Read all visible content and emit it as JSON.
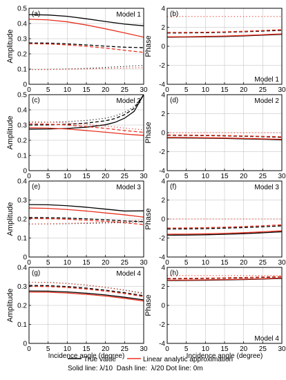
{
  "legend": {
    "true_value": "True value",
    "linear": "Linear analytic approximation",
    "line_key": "Solid line: λ/10  Dash line:  λ/20 Dot line: 0m"
  },
  "colors": {
    "true": "#000000",
    "approx": "#e8301f",
    "grid": "#b9b9b9"
  },
  "chart_data": [
    {
      "type": "line",
      "panel": "(a)",
      "model": "Model 1",
      "xlabel": "",
      "ylabel": "Amplitude",
      "xlim": [
        0,
        30
      ],
      "ylim": [
        0,
        0.5
      ],
      "xticks": [
        0,
        5,
        10,
        15,
        20,
        25,
        30
      ],
      "yticks": [
        0,
        0.1,
        0.2,
        0.3,
        0.4,
        0.5
      ],
      "x": [
        0,
        5,
        10,
        15,
        20,
        25,
        30
      ],
      "series": [
        {
          "kind": "true",
          "style": "solid",
          "values": [
            0.458,
            0.456,
            0.447,
            0.431,
            0.413,
            0.396,
            0.385
          ]
        },
        {
          "kind": "approx",
          "style": "solid",
          "values": [
            0.428,
            0.424,
            0.411,
            0.39,
            0.365,
            0.338,
            0.31
          ]
        },
        {
          "kind": "true",
          "style": "dashed",
          "values": [
            0.272,
            0.271,
            0.266,
            0.259,
            0.251,
            0.244,
            0.241
          ]
        },
        {
          "kind": "approx",
          "style": "dashed",
          "values": [
            0.267,
            0.265,
            0.259,
            0.25,
            0.238,
            0.224,
            0.21
          ]
        },
        {
          "kind": "true",
          "style": "dotted",
          "values": [
            0.097,
            0.098,
            0.101,
            0.105,
            0.111,
            0.118,
            0.124
          ]
        },
        {
          "kind": "approx",
          "style": "dotted",
          "values": [
            0.097,
            0.097,
            0.099,
            0.101,
            0.104,
            0.107,
            0.11
          ]
        }
      ]
    },
    {
      "type": "line",
      "panel": "(b)",
      "model": "Model 1",
      "xlabel": "",
      "ylabel": "Phase",
      "xlim": [
        0,
        30
      ],
      "ylim": [
        -4,
        4
      ],
      "xticks": [
        0,
        5,
        10,
        15,
        20,
        25,
        30
      ],
      "yticks": [
        -4,
        -2,
        0,
        2,
        4
      ],
      "x": [
        0,
        5,
        10,
        15,
        20,
        25,
        30
      ],
      "series": [
        {
          "kind": "true",
          "style": "solid",
          "values": [
            0.96,
            0.97,
            0.99,
            1.03,
            1.09,
            1.17,
            1.26
          ]
        },
        {
          "kind": "approx",
          "style": "solid",
          "values": [
            1.0,
            1.01,
            1.04,
            1.08,
            1.14,
            1.22,
            1.31
          ]
        },
        {
          "kind": "true",
          "style": "dashed",
          "values": [
            1.4,
            1.41,
            1.43,
            1.47,
            1.53,
            1.6,
            1.68
          ]
        },
        {
          "kind": "approx",
          "style": "dashed",
          "values": [
            1.45,
            1.46,
            1.48,
            1.52,
            1.58,
            1.66,
            1.75
          ]
        },
        {
          "kind": "approx",
          "style": "dotted",
          "values": [
            3.14,
            3.14,
            3.14,
            3.14,
            3.14,
            3.14,
            3.14
          ]
        }
      ]
    },
    {
      "type": "line",
      "panel": "(c)",
      "model": "Model 2",
      "xlabel": "",
      "ylabel": "Amplitude",
      "xlim": [
        0,
        30
      ],
      "ylim": [
        0,
        0.5
      ],
      "xticks": [
        0,
        5,
        10,
        15,
        20,
        25,
        30
      ],
      "yticks": [
        0,
        0.1,
        0.2,
        0.3,
        0.4,
        0.5
      ],
      "x": [
        0,
        5,
        10,
        15,
        20,
        22.5,
        25,
        27.5,
        30
      ],
      "series": [
        {
          "kind": "true",
          "style": "solid",
          "values": [
            0.273,
            0.274,
            0.278,
            0.286,
            0.302,
            0.318,
            0.345,
            0.39,
            0.5
          ]
        },
        {
          "kind": "approx",
          "style": "solid",
          "values": [
            0.282,
            0.28,
            0.274,
            0.264,
            0.253,
            0.247,
            0.241,
            0.236,
            0.232
          ]
        },
        {
          "kind": "true",
          "style": "dashed",
          "values": [
            0.3,
            0.301,
            0.305,
            0.313,
            0.328,
            0.343,
            0.368,
            0.41,
            0.5
          ]
        },
        {
          "kind": "approx",
          "style": "dashed",
          "values": [
            0.308,
            0.306,
            0.3,
            0.29,
            0.278,
            0.271,
            0.264,
            0.258,
            0.252
          ]
        },
        {
          "kind": "true",
          "style": "dotted",
          "values": [
            0.318,
            0.319,
            0.323,
            0.33,
            0.345,
            0.36,
            0.383,
            0.422,
            0.5
          ]
        },
        {
          "kind": "approx",
          "style": "dotted",
          "values": [
            0.322,
            0.32,
            0.314,
            0.305,
            0.294,
            0.287,
            0.28,
            0.274,
            0.268
          ]
        }
      ]
    },
    {
      "type": "line",
      "panel": "(d)",
      "model": "Model 2",
      "xlabel": "",
      "ylabel": "Phase",
      "xlim": [
        0,
        30
      ],
      "ylim": [
        -4,
        4
      ],
      "xticks": [
        0,
        5,
        10,
        15,
        20,
        25,
        30
      ],
      "yticks": [
        -4,
        -2,
        0,
        2,
        4
      ],
      "x": [
        0,
        5,
        10,
        15,
        20,
        25,
        30
      ],
      "series": [
        {
          "kind": "true",
          "style": "solid",
          "values": [
            -0.55,
            -0.56,
            -0.58,
            -0.61,
            -0.65,
            -0.7,
            -0.76
          ]
        },
        {
          "kind": "approx",
          "style": "solid",
          "values": [
            -0.5,
            -0.51,
            -0.53,
            -0.56,
            -0.6,
            -0.65,
            -0.7
          ]
        },
        {
          "kind": "true",
          "style": "dashed",
          "values": [
            -0.28,
            -0.29,
            -0.31,
            -0.34,
            -0.38,
            -0.43,
            -0.49
          ]
        },
        {
          "kind": "approx",
          "style": "dashed",
          "values": [
            -0.24,
            -0.25,
            -0.27,
            -0.3,
            -0.34,
            -0.39,
            -0.44
          ]
        },
        {
          "kind": "approx",
          "style": "dotted",
          "values": [
            0.0,
            0.0,
            0.0,
            0.0,
            0.0,
            0.0,
            0.0
          ]
        }
      ]
    },
    {
      "type": "line",
      "panel": "(e)",
      "model": "Model 3",
      "xlabel": "",
      "ylabel": "Amplitude",
      "xlim": [
        0,
        30
      ],
      "ylim": [
        0,
        0.4
      ],
      "xticks": [
        0,
        5,
        10,
        15,
        20,
        25,
        30
      ],
      "yticks": [
        0,
        0.1,
        0.2,
        0.3,
        0.4
      ],
      "x": [
        0,
        5,
        10,
        15,
        20,
        25,
        30
      ],
      "series": [
        {
          "kind": "true",
          "style": "solid",
          "values": [
            0.276,
            0.275,
            0.27,
            0.262,
            0.252,
            0.242,
            0.243
          ]
        },
        {
          "kind": "approx",
          "style": "solid",
          "values": [
            0.258,
            0.256,
            0.25,
            0.242,
            0.232,
            0.222,
            0.21
          ]
        },
        {
          "kind": "true",
          "style": "dashed",
          "values": [
            0.208,
            0.207,
            0.205,
            0.201,
            0.196,
            0.19,
            0.186
          ]
        },
        {
          "kind": "approx",
          "style": "dashed",
          "values": [
            0.203,
            0.202,
            0.199,
            0.194,
            0.188,
            0.18,
            0.171
          ]
        },
        {
          "kind": "true",
          "style": "dotted",
          "values": [
            0.174,
            0.174,
            0.175,
            0.177,
            0.179,
            0.182,
            0.186
          ]
        },
        {
          "kind": "approx",
          "style": "dotted",
          "values": [
            0.174,
            0.175,
            0.177,
            0.18,
            0.184,
            0.189,
            0.195
          ]
        }
      ]
    },
    {
      "type": "line",
      "panel": "(f)",
      "model": "Model 3",
      "xlabel": "",
      "ylabel": "Phase",
      "xlim": [
        0,
        30
      ],
      "ylim": [
        -4,
        4
      ],
      "xticks": [
        0,
        5,
        10,
        15,
        20,
        25,
        30
      ],
      "yticks": [
        -4,
        -2,
        0,
        2,
        4
      ],
      "x": [
        0,
        5,
        10,
        15,
        20,
        25,
        30
      ],
      "series": [
        {
          "kind": "true",
          "style": "solid",
          "values": [
            -1.7,
            -1.69,
            -1.66,
            -1.61,
            -1.54,
            -1.45,
            -1.34
          ]
        },
        {
          "kind": "approx",
          "style": "solid",
          "values": [
            -1.6,
            -1.59,
            -1.56,
            -1.51,
            -1.44,
            -1.35,
            -1.24
          ]
        },
        {
          "kind": "true",
          "style": "dashed",
          "values": [
            -1.05,
            -1.04,
            -1.01,
            -0.96,
            -0.9,
            -0.82,
            -0.72
          ]
        },
        {
          "kind": "approx",
          "style": "dashed",
          "values": [
            -0.95,
            -0.94,
            -0.91,
            -0.86,
            -0.79,
            -0.71,
            -0.61
          ]
        },
        {
          "kind": "approx",
          "style": "dotted",
          "values": [
            0.0,
            0.0,
            0.0,
            0.0,
            0.0,
            0.0,
            0.0
          ]
        }
      ]
    },
    {
      "type": "line",
      "panel": "(g)",
      "model": "Model 4",
      "xlabel": "Incidence angle (degree)",
      "ylabel": "Amplitude",
      "xlim": [
        0,
        30
      ],
      "ylim": [
        0,
        0.4
      ],
      "xticks": [
        0,
        5,
        10,
        15,
        20,
        25,
        30
      ],
      "yticks": [
        0,
        0.1,
        0.2,
        0.3,
        0.4
      ],
      "x": [
        0,
        5,
        10,
        15,
        20,
        25,
        30
      ],
      "series": [
        {
          "kind": "true",
          "style": "solid",
          "values": [
            0.276,
            0.275,
            0.271,
            0.264,
            0.255,
            0.243,
            0.229
          ]
        },
        {
          "kind": "approx",
          "style": "solid",
          "values": [
            0.27,
            0.269,
            0.265,
            0.258,
            0.249,
            0.237,
            0.223
          ]
        },
        {
          "kind": "true",
          "style": "dashed",
          "values": [
            0.305,
            0.304,
            0.299,
            0.291,
            0.28,
            0.267,
            0.251
          ]
        },
        {
          "kind": "approx",
          "style": "dashed",
          "values": [
            0.3,
            0.299,
            0.294,
            0.286,
            0.275,
            0.262,
            0.246
          ]
        },
        {
          "kind": "true",
          "style": "dotted",
          "values": [
            0.322,
            0.321,
            0.316,
            0.307,
            0.295,
            0.281,
            0.264
          ]
        },
        {
          "kind": "approx",
          "style": "dotted",
          "values": [
            0.322,
            0.32,
            0.315,
            0.306,
            0.294,
            0.279,
            0.261
          ]
        }
      ]
    },
    {
      "type": "line",
      "panel": "(h)",
      "model": "Model 4",
      "xlabel": "Incidence angle (degree)",
      "ylabel": "Phase",
      "xlim": [
        0,
        30
      ],
      "ylim": [
        -4,
        4
      ],
      "xticks": [
        0,
        5,
        10,
        15,
        20,
        25,
        30
      ],
      "yticks": [
        -4,
        -2,
        0,
        2,
        4
      ],
      "x": [
        0,
        5,
        10,
        15,
        20,
        25,
        30
      ],
      "series": [
        {
          "kind": "true",
          "style": "solid",
          "values": [
            2.62,
            2.63,
            2.65,
            2.68,
            2.72,
            2.77,
            2.84
          ]
        },
        {
          "kind": "approx",
          "style": "solid",
          "values": [
            2.66,
            2.67,
            2.69,
            2.72,
            2.76,
            2.81,
            2.88
          ]
        },
        {
          "kind": "true",
          "style": "dashed",
          "values": [
            2.8,
            2.81,
            2.83,
            2.86,
            2.9,
            2.95,
            3.0
          ]
        },
        {
          "kind": "approx",
          "style": "dashed",
          "values": [
            2.84,
            2.85,
            2.87,
            2.9,
            2.94,
            2.99,
            3.04
          ]
        },
        {
          "kind": "approx",
          "style": "dotted",
          "values": [
            3.14,
            3.14,
            3.14,
            3.14,
            3.14,
            3.14,
            3.14
          ]
        }
      ]
    }
  ]
}
